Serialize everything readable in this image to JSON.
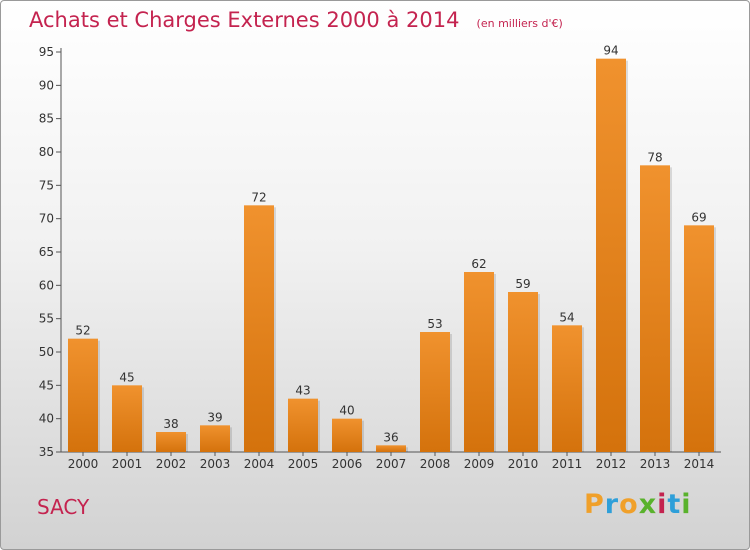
{
  "chart_data": {
    "type": "bar",
    "title": "Achats et Charges Externes 2000 à 2014",
    "subtitle": "(en milliers d'€)",
    "categories": [
      "2000",
      "2001",
      "2002",
      "2003",
      "2004",
      "2005",
      "2006",
      "2007",
      "2008",
      "2009",
      "2010",
      "2011",
      "2012",
      "2013",
      "2014"
    ],
    "values": [
      52,
      45,
      38,
      39,
      72,
      43,
      40,
      36,
      53,
      62,
      59,
      54,
      94,
      78,
      69
    ],
    "ylim": [
      35,
      95
    ],
    "yticks": [
      35,
      40,
      45,
      50,
      55,
      60,
      65,
      70,
      75,
      80,
      85,
      90,
      95
    ],
    "grid": false,
    "bar_color": "#f0922e",
    "bar_color_dark": "#d4720c"
  },
  "commune": "SACY",
  "logo": {
    "text": "Proxiti",
    "letters": [
      "P",
      "r",
      "o",
      "x",
      "i",
      "t",
      "i"
    ],
    "colors": [
      "#f0a02a",
      "#2e9fd9",
      "#f0a02a",
      "#59b22c",
      "#c4234f",
      "#2e9fd9",
      "#59b22c"
    ]
  },
  "colors": {
    "accent": "#c4234f",
    "axis": "#555555"
  }
}
